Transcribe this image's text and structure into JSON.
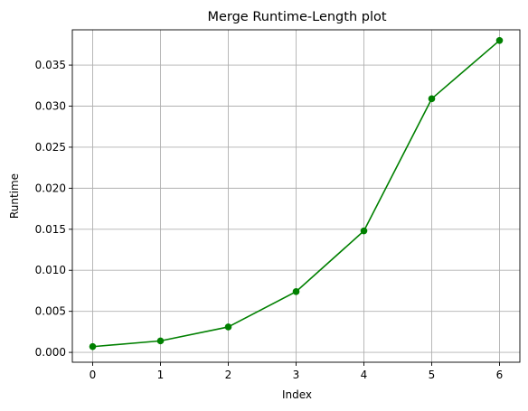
{
  "chart_data": {
    "type": "line",
    "title": "Merge Runtime-Length plot",
    "xlabel": "Index",
    "ylabel": "Runtime",
    "x": [
      0,
      1,
      2,
      3,
      4,
      5,
      6
    ],
    "series": [
      {
        "values": [
          0.0007,
          0.0014,
          0.0031,
          0.0074,
          0.0148,
          0.0309,
          0.038
        ],
        "color": "#008000",
        "marker": "circle"
      }
    ],
    "xticks": [
      "0",
      "1",
      "2",
      "3",
      "4",
      "5",
      "6"
    ],
    "yticks": [
      "0.000",
      "0.005",
      "0.010",
      "0.015",
      "0.020",
      "0.025",
      "0.030",
      "0.035"
    ],
    "xlim": [
      -0.3,
      6.3
    ],
    "ylim": [
      -0.0012,
      0.0393
    ],
    "grid": true
  }
}
